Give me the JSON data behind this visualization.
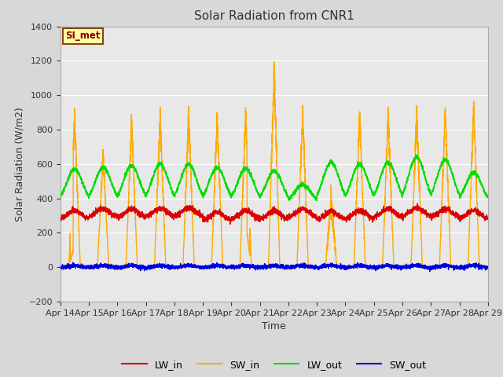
{
  "title": "Solar Radiation from CNR1",
  "xlabel": "Time",
  "ylabel": "Solar Radiation (W/m2)",
  "ylim": [
    -200,
    1400
  ],
  "yticks": [
    -200,
    0,
    200,
    400,
    600,
    800,
    1000,
    1200,
    1400
  ],
  "annotation_text": "SI_met",
  "annotation_bg": "#ffffa0",
  "annotation_border": "#8B4513",
  "annotation_text_color": "#8B0000",
  "colors": {
    "LW_in": "#dd0000",
    "SW_in": "#ffaa00",
    "LW_out": "#00dd00",
    "SW_out": "#0000dd"
  },
  "bg_color": "#d8d8d8",
  "plot_bg": "#e8e8e8",
  "grid_color": "#ffffff",
  "linewidth": 1.0,
  "n_days": 15,
  "start_day": 14
}
